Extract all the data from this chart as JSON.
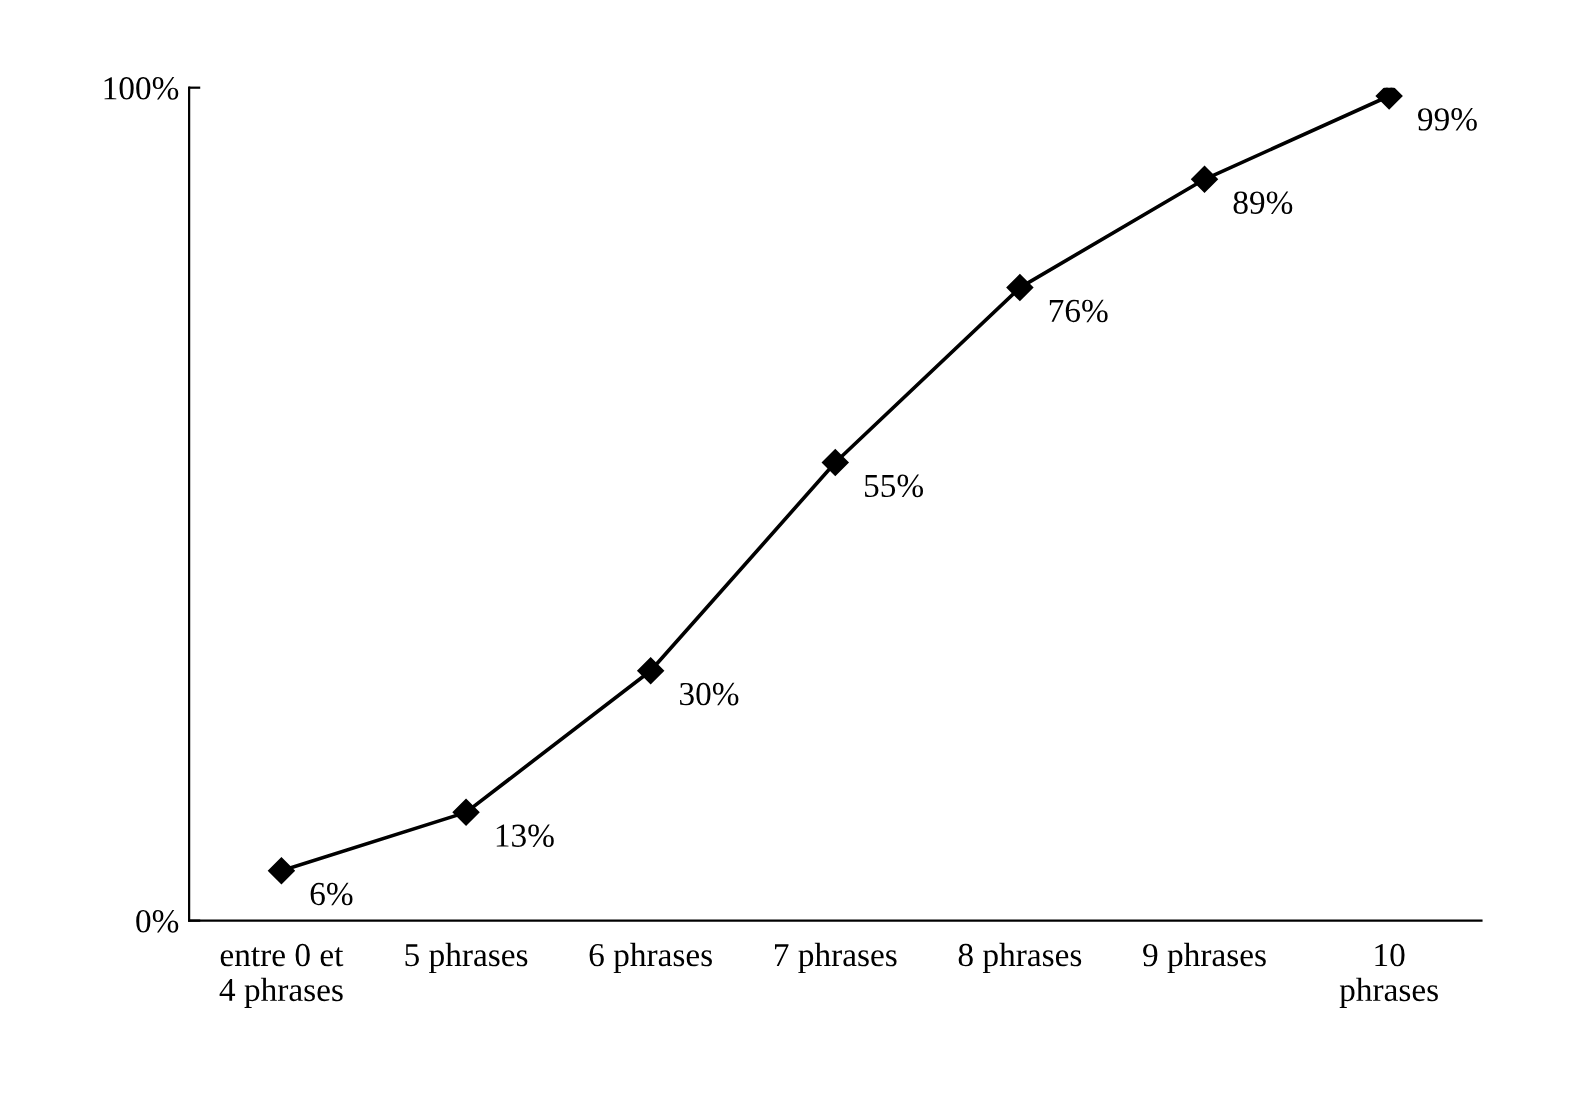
{
  "chart_data": {
    "type": "line",
    "categories": [
      "entre 0 et\n4 phrases",
      "5 phrases",
      "6 phrases",
      "7 phrases",
      "8 phrases",
      "9 phrases",
      "10\nphrases"
    ],
    "values": [
      6,
      13,
      30,
      55,
      76,
      89,
      99
    ],
    "color": "#000000",
    "ylim": [
      0,
      100
    ],
    "yticks": [
      {
        "value": 0,
        "label": "0%"
      },
      {
        "value": 100,
        "label": "100%"
      }
    ],
    "value_labels": [
      "6%",
      "13%",
      "30%",
      "55%",
      "76%",
      "89%",
      "99%"
    ],
    "marker": "diamond",
    "line_style": "solid",
    "grid": false
  }
}
